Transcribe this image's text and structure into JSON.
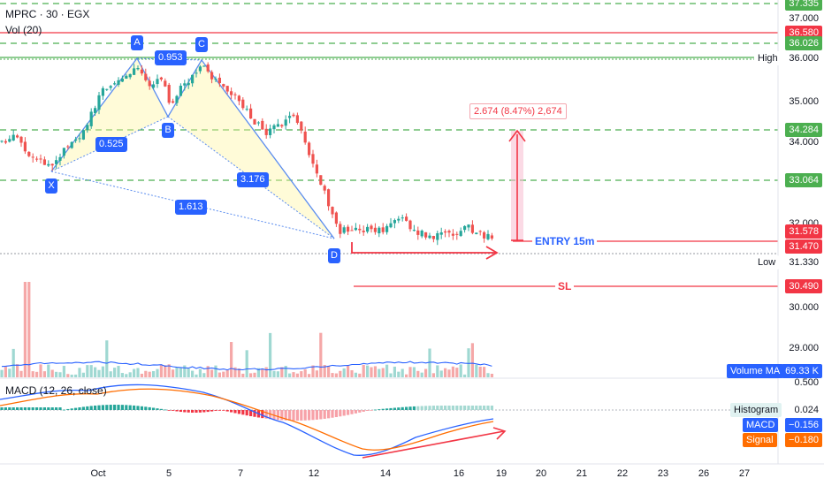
{
  "header": {
    "symbol_line": "MPRC · 30 · EGX",
    "volume_indicator": "Vol (20)",
    "macd_indicator": "MACD (12, 26, close)"
  },
  "price_scale": {
    "ticks": [
      "37.000",
      "35.000",
      "34.000",
      "32.000",
      "30.000",
      "29.000"
    ],
    "badges": {
      "level_top": "37.335",
      "level_red": "36.580",
      "level_green": "36.026",
      "high_value": "36.000",
      "level_target": "34.284",
      "level_mid": "33.064",
      "price_current": "31.578",
      "price_entry": "31.470",
      "low_value": "31.330",
      "stop_loss": "30.490",
      "volume_ma": "69.33 K",
      "macd_scale": "0.500",
      "histogram": "0.024",
      "macd": "−0.156",
      "signal": "−0.180"
    },
    "labels": {
      "high": "High",
      "low": "Low",
      "volume_ma": "Volume MA",
      "histogram": "Histogram",
      "macd": "MACD",
      "signal": "Signal"
    }
  },
  "time_axis": {
    "labels": [
      "Oct",
      "5",
      "7",
      "12",
      "14",
      "16",
      "19",
      "20",
      "21",
      "22",
      "23",
      "26",
      "27"
    ]
  },
  "pattern": {
    "points": [
      "X",
      "A",
      "B",
      "C",
      "D"
    ],
    "ratios": [
      "0.953",
      "0.525",
      "3.176",
      "1.613"
    ]
  },
  "annotations": {
    "measure": "2.674 (8.47%) 2,674",
    "entry": "ENTRY 15m",
    "sl": "SL"
  },
  "colors": {
    "up": "#26a69a",
    "down": "#ef5350",
    "green_level": "#4caf50",
    "red_level": "#f23645",
    "pattern_blue": "#2962ff",
    "macd_line": "#2962ff",
    "signal_line": "#ff6d00"
  }
}
